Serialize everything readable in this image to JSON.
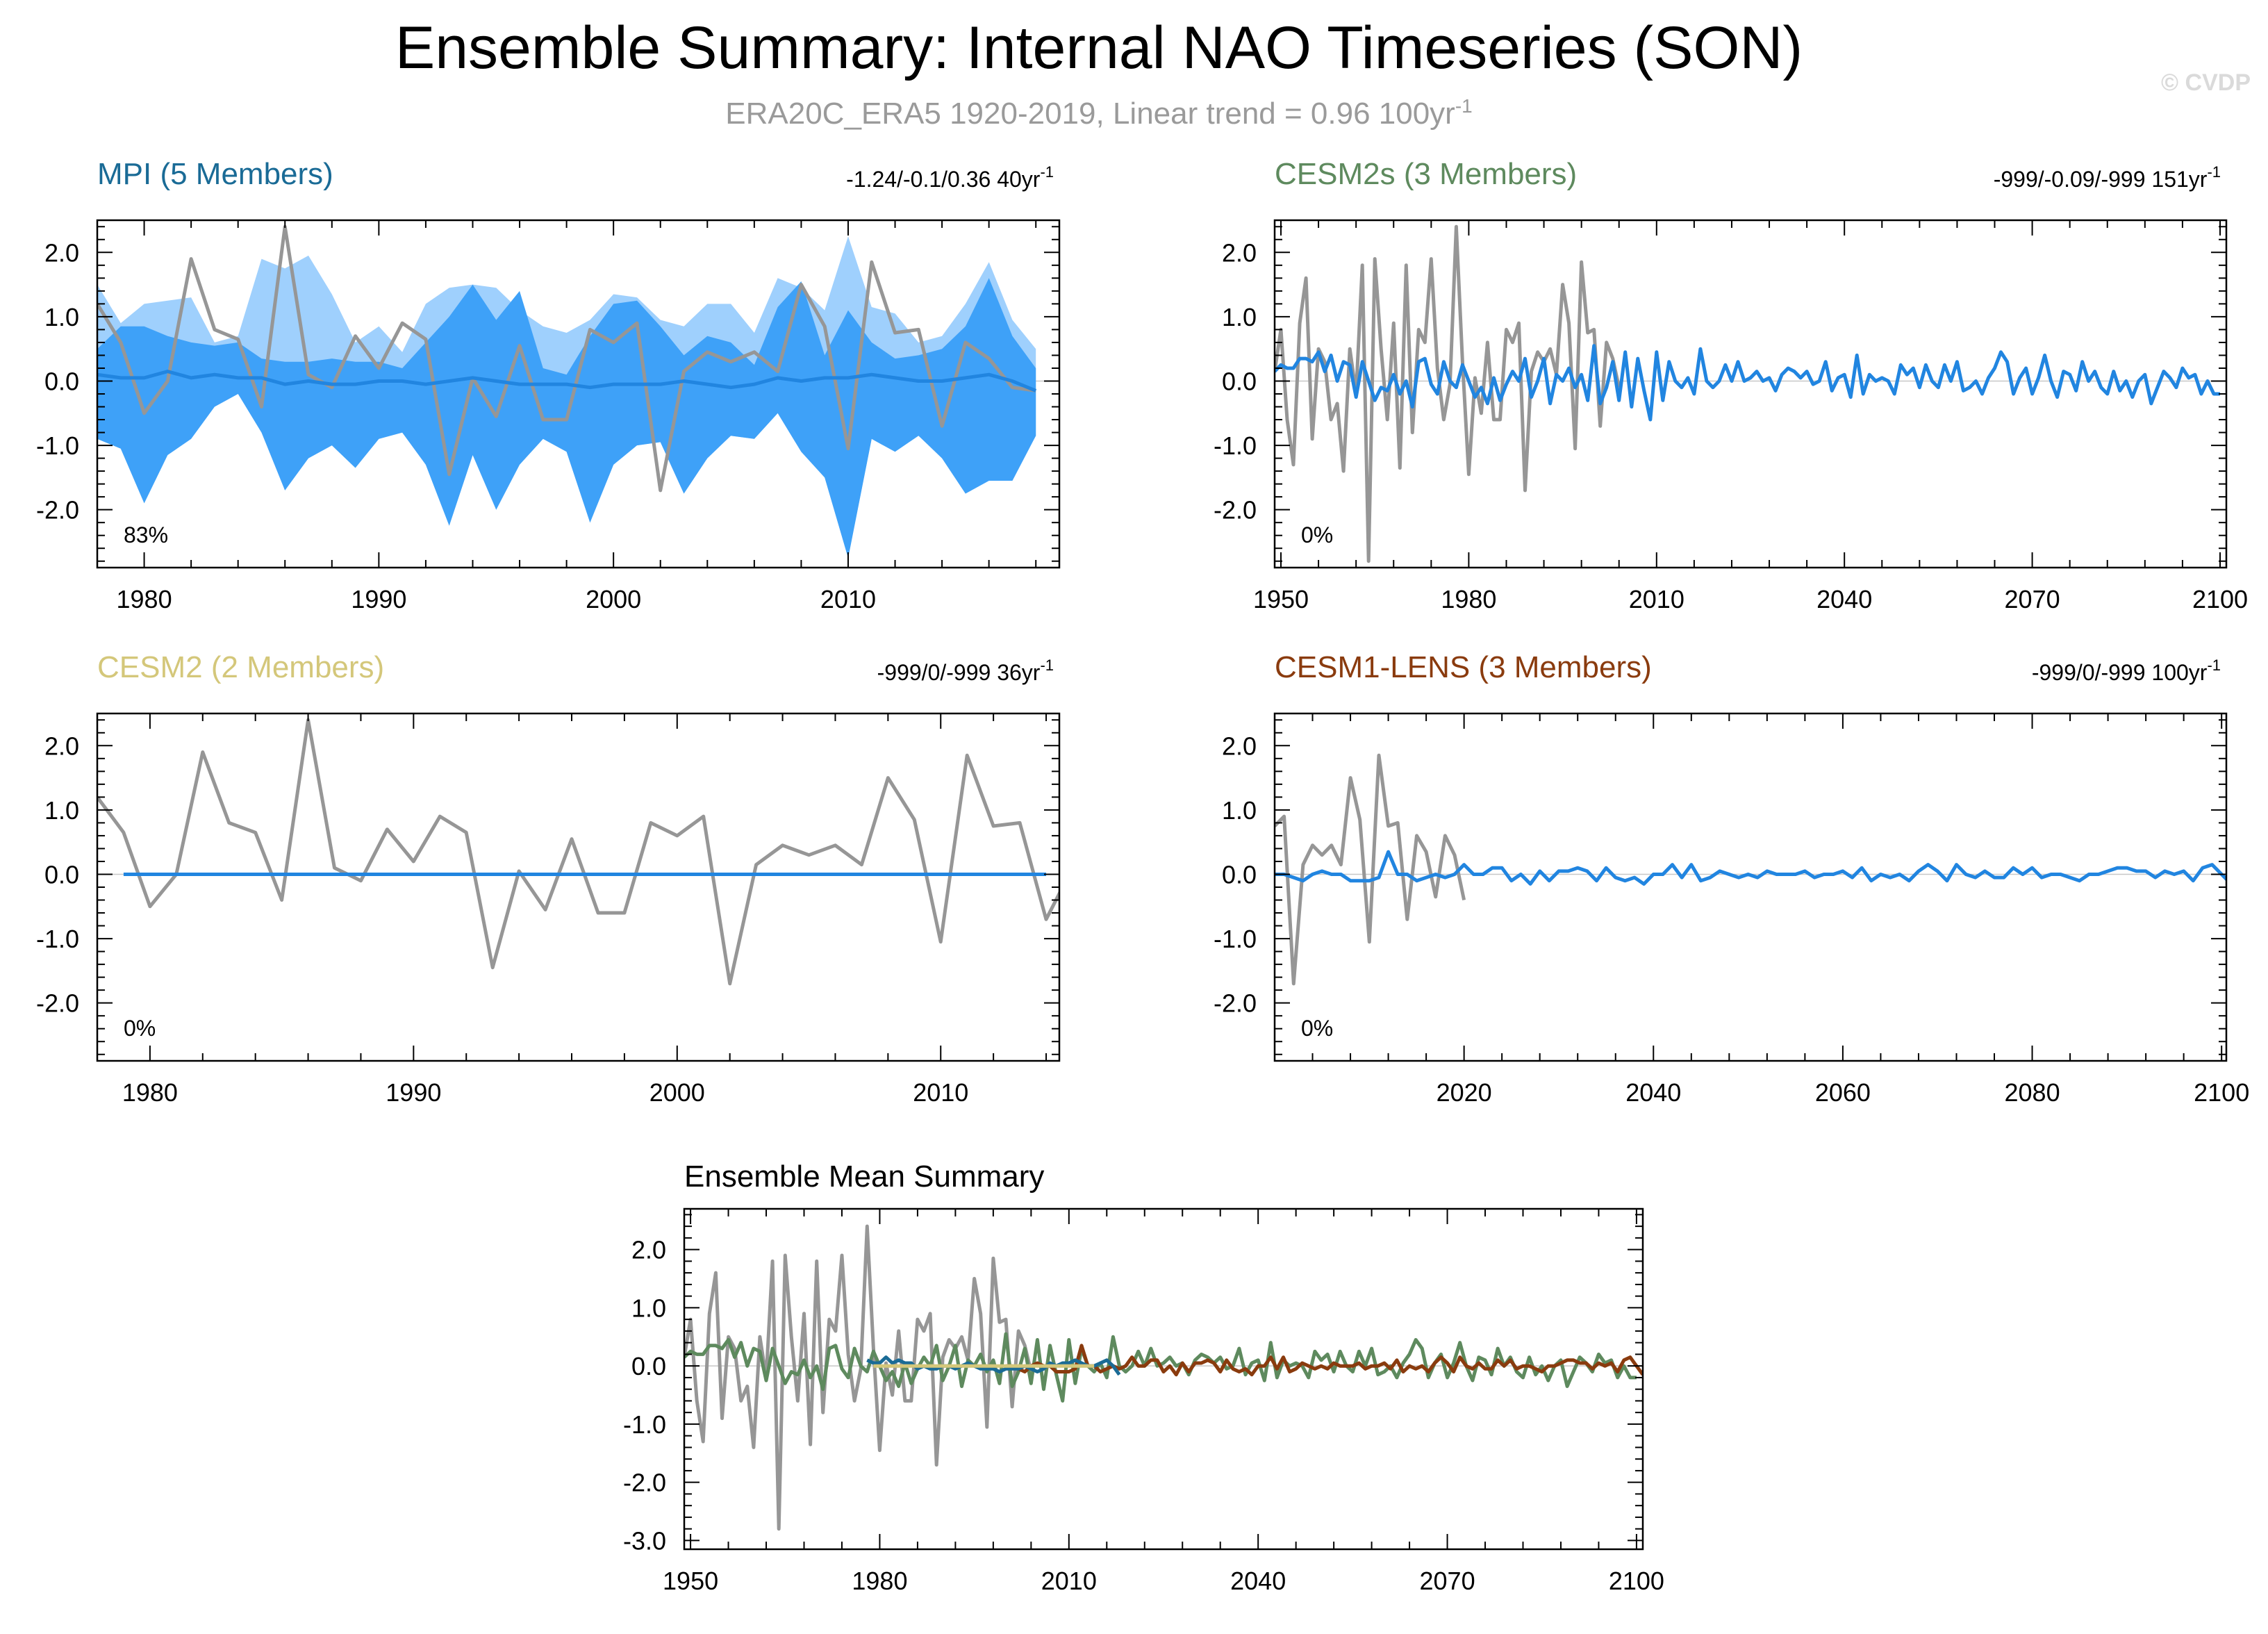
{
  "title": "Ensemble Summary: Internal NAO Timeseries (SON)",
  "subtitle": "ERA20C_ERA5 1920-2019, Linear trend = 0.96 100yr",
  "subtitle_sup": "-1",
  "copyright": "© CVDP",
  "colors": {
    "observed": "#969696",
    "ensemble_mean": "#2185e0",
    "spread_inner": "#3ea1f8",
    "spread_outer": "#9fd0fd",
    "mpi": "#1a6b96",
    "cesm2s": "#5e8a5e",
    "cesm2": "#d4c77a",
    "cesm1lens": "#8a3b0e"
  },
  "chart_data": [
    {
      "id": "mpi",
      "type": "line",
      "title": "MPI (5 Members)",
      "stat_text": "-1.24/-0.1/0.36 40yr",
      "stat_sup": "-1",
      "annotation": "83%",
      "xlim": [
        1978,
        2019
      ],
      "ylim": [
        -2.9,
        2.5
      ],
      "xticks": [
        1980,
        1990,
        2000,
        2010
      ],
      "yticks": [
        2.0,
        1.0,
        0.0,
        -1.0,
        -2.0
      ],
      "x": [
        1978,
        1979,
        1980,
        1981,
        1982,
        1983,
        1984,
        1985,
        1986,
        1987,
        1988,
        1989,
        1990,
        1991,
        1992,
        1993,
        1994,
        1995,
        1996,
        1997,
        1998,
        1999,
        2000,
        2001,
        2002,
        2003,
        2004,
        2005,
        2006,
        2007,
        2008,
        2009,
        2010,
        2011,
        2012,
        2013,
        2014,
        2015,
        2016,
        2017,
        2018
      ],
      "bands": [
        {
          "name": "Outer spread",
          "upper": [
            1.5,
            0.9,
            1.2,
            1.25,
            1.3,
            0.6,
            0.7,
            1.9,
            1.75,
            1.95,
            1.35,
            0.6,
            0.85,
            0.45,
            1.2,
            1.45,
            1.5,
            1.45,
            1.1,
            0.85,
            0.75,
            0.95,
            1.35,
            1.3,
            0.95,
            0.85,
            1.2,
            1.2,
            0.75,
            1.6,
            1.45,
            1.1,
            2.25,
            1.15,
            1.05,
            0.6,
            0.7,
            1.2,
            1.85,
            0.95,
            0.5
          ],
          "lower": [
            -0.9,
            -1.05,
            -1.9,
            -1.15,
            -0.9,
            -0.4,
            -0.2,
            -0.8,
            -1.7,
            -1.2,
            -1.0,
            -1.35,
            -0.9,
            -0.8,
            -1.3,
            -2.25,
            -1.15,
            -2.0,
            -1.3,
            -0.9,
            -1.1,
            -2.2,
            -1.3,
            -1.0,
            -0.95,
            -1.75,
            -1.2,
            -0.85,
            -0.9,
            -0.5,
            -1.1,
            -1.5,
            -2.75,
            -0.9,
            -1.1,
            -0.85,
            -1.2,
            -1.75,
            -1.55,
            -1.55,
            -0.85
          ]
        },
        {
          "name": "Inner spread",
          "upper": [
            0.5,
            0.85,
            0.85,
            0.7,
            0.6,
            0.55,
            0.6,
            0.35,
            0.3,
            0.3,
            0.35,
            0.3,
            0.3,
            0.2,
            0.6,
            1.0,
            1.5,
            0.95,
            1.4,
            0.2,
            0.1,
            0.7,
            1.2,
            1.25,
            0.85,
            0.4,
            0.7,
            0.6,
            0.25,
            1.15,
            1.55,
            0.4,
            1.1,
            0.6,
            0.35,
            0.4,
            0.5,
            0.85,
            1.6,
            0.7,
            0.2
          ],
          "lower": [
            -0.9,
            -1.05,
            -1.9,
            -1.15,
            -0.9,
            -0.4,
            -0.2,
            -0.8,
            -1.7,
            -1.2,
            -1.0,
            -1.35,
            -0.9,
            -0.8,
            -1.3,
            -2.25,
            -1.15,
            -2.0,
            -1.3,
            -0.9,
            -1.1,
            -2.2,
            -1.3,
            -1.0,
            -0.95,
            -1.75,
            -1.2,
            -0.85,
            -0.9,
            -0.5,
            -1.1,
            -1.5,
            -2.75,
            -0.9,
            -1.1,
            -0.85,
            -1.2,
            -1.75,
            -1.55,
            -1.55,
            -0.85
          ]
        }
      ],
      "series": [
        {
          "role": "observed",
          "x": [
            1978,
            1979,
            1980,
            1981,
            1982,
            1983,
            1984,
            1985,
            1986,
            1987,
            1988,
            1989,
            1990,
            1991,
            1992,
            1993,
            1994,
            1995,
            1996,
            1997,
            1998,
            1999,
            2000,
            2001,
            2002,
            2003,
            2004,
            2005,
            2006,
            2007,
            2008,
            2009,
            2010,
            2011,
            2012,
            2013,
            2014,
            2015,
            2016,
            2017,
            2018
          ],
          "values": [
            1.2,
            0.6,
            -0.5,
            0.0,
            1.9,
            0.8,
            0.65,
            -0.4,
            2.4,
            0.1,
            -0.1,
            0.7,
            0.2,
            0.9,
            0.65,
            -1.45,
            0.05,
            -0.55,
            0.55,
            -0.6,
            -0.6,
            0.8,
            0.6,
            0.9,
            -1.7,
            0.15,
            0.45,
            0.3,
            0.45,
            0.15,
            1.5,
            0.85,
            -1.05,
            1.85,
            0.75,
            0.8,
            -0.7,
            0.6,
            0.35,
            -0.1,
            -0.15
          ]
        },
        {
          "role": "ensemble_mean",
          "x": [
            1978,
            1979,
            1980,
            1981,
            1982,
            1983,
            1984,
            1985,
            1986,
            1987,
            1988,
            1989,
            1990,
            1991,
            1992,
            1993,
            1994,
            1995,
            1996,
            1997,
            1998,
            1999,
            2000,
            2001,
            2002,
            2003,
            2004,
            2005,
            2006,
            2007,
            2008,
            2009,
            2010,
            2011,
            2012,
            2013,
            2014,
            2015,
            2016,
            2017,
            2018
          ],
          "values": [
            0.1,
            0.05,
            0.05,
            0.15,
            0.05,
            0.1,
            0.05,
            0.05,
            -0.05,
            0.0,
            -0.05,
            -0.05,
            0.0,
            0.0,
            -0.05,
            0.0,
            0.05,
            0.0,
            -0.05,
            -0.05,
            -0.05,
            -0.1,
            -0.05,
            -0.05,
            -0.05,
            0.0,
            -0.05,
            -0.1,
            -0.05,
            0.05,
            0.0,
            0.05,
            0.05,
            0.1,
            0.05,
            0.0,
            0.0,
            0.05,
            0.1,
            0.0,
            -0.15
          ]
        }
      ]
    },
    {
      "id": "cesm2s",
      "type": "line",
      "title": "CESM2s (3 Members)",
      "stat_text": "-999/-0.09/-999 151yr",
      "stat_sup": "-1",
      "annotation": "0%",
      "xlim": [
        1949,
        2101
      ],
      "ylim": [
        -2.9,
        2.5
      ],
      "xticks": [
        1950,
        1980,
        2010,
        2040,
        2070,
        2100
      ],
      "yticks": [
        2.0,
        1.0,
        0.0,
        -1.0,
        -2.0
      ],
      "series": [
        {
          "role": "observed",
          "x0": 1949,
          "values": [
            0.15,
            0.8,
            -0.6,
            -1.3,
            0.9,
            1.6,
            -0.9,
            0.5,
            0.3,
            -0.6,
            -0.35,
            -1.4,
            0.5,
            -0.2,
            1.8,
            -2.8,
            1.9,
            0.5,
            -0.6,
            0.9,
            -1.35,
            1.8,
            -0.8,
            0.8,
            0.6,
            1.9,
            0.2,
            -0.6,
            -0.05,
            2.4,
            0.3,
            -1.45,
            0.05,
            -0.5,
            0.6,
            -0.6,
            -0.6,
            0.8,
            0.6,
            0.9,
            -1.7,
            0.15,
            0.45,
            0.3,
            0.5,
            0.1,
            1.5,
            0.9,
            -1.05,
            1.85,
            0.75,
            0.8,
            -0.7,
            0.6,
            0.35,
            -0.1
          ]
        },
        {
          "role": "ensemble_mean",
          "x0": 1949,
          "values": [
            0.15,
            0.25,
            0.2,
            0.2,
            0.35,
            0.35,
            0.3,
            0.45,
            0.15,
            0.4,
            0.0,
            0.3,
            0.25,
            -0.25,
            0.3,
            0.0,
            -0.3,
            -0.1,
            -0.15,
            0.1,
            -0.2,
            0.0,
            -0.4,
            0.3,
            0.35,
            -0.05,
            -0.2,
            0.3,
            0.0,
            -0.1,
            0.25,
            0.0,
            -0.25,
            -0.1,
            -0.35,
            0.05,
            -0.3,
            -0.05,
            0.15,
            0.0,
            0.35,
            -0.25,
            0.0,
            0.35,
            -0.35,
            0.1,
            0.0,
            0.2,
            -0.1,
            0.1,
            -0.3,
            0.55,
            -0.35,
            -0.1,
            0.3,
            -0.3,
            0.45,
            -0.4,
            0.35,
            -0.15,
            -0.6,
            0.45,
            -0.3,
            0.3,
            0.0,
            -0.1,
            0.05,
            -0.2,
            0.5,
            0.0,
            -0.1,
            0.0,
            0.25,
            0.0,
            0.3,
            0.0,
            0.05,
            0.15,
            0.0,
            0.05,
            -0.15,
            0.1,
            0.2,
            0.15,
            0.05,
            0.15,
            -0.05,
            0.0,
            0.3,
            -0.15,
            0.05,
            0.1,
            -0.25,
            0.4,
            -0.2,
            0.1,
            0.0,
            0.05,
            0.0,
            -0.2,
            0.25,
            0.1,
            0.2,
            -0.1,
            0.25,
            0.0,
            -0.1,
            0.25,
            0.0,
            0.3,
            -0.15,
            -0.1,
            0.0,
            -0.2,
            0.05,
            0.2,
            0.45,
            0.3,
            -0.2,
            0.05,
            0.2,
            -0.2,
            0.05,
            0.4,
            0.0,
            -0.25,
            0.15,
            0.1,
            -0.15,
            0.3,
            0.0,
            0.15,
            -0.1,
            -0.2,
            0.15,
            -0.15,
            0.0,
            -0.25,
            0.0,
            0.1,
            -0.35,
            -0.1,
            0.15,
            0.05,
            -0.1,
            0.2,
            0.05,
            0.1,
            -0.2,
            0.0,
            -0.2,
            -0.2
          ]
        }
      ]
    },
    {
      "id": "cesm2",
      "type": "line",
      "title": "CESM2 (2 Members)",
      "stat_text": "-999/0/-999 36yr",
      "stat_sup": "-1",
      "annotation": "0%",
      "xlim": [
        1978,
        2014.5
      ],
      "ylim": [
        -2.9,
        2.5
      ],
      "xticks": [
        1980,
        1990,
        2000,
        2010
      ],
      "yticks": [
        2.0,
        1.0,
        0.0,
        -1.0,
        -2.0
      ],
      "series": [
        {
          "role": "observed",
          "x0": 1978,
          "values": [
            1.2,
            0.65,
            -0.5,
            0.0,
            1.9,
            0.8,
            0.65,
            -0.4,
            2.4,
            0.1,
            -0.1,
            0.7,
            0.2,
            0.9,
            0.65,
            -1.45,
            0.05,
            -0.55,
            0.55,
            -0.6,
            -0.6,
            0.8,
            0.6,
            0.9,
            -1.7,
            0.15,
            0.45,
            0.3,
            0.45,
            0.15,
            1.5,
            0.85,
            -1.05,
            1.85,
            0.75,
            0.8,
            -0.7,
            0.1
          ]
        },
        {
          "role": "ensemble_mean",
          "x": [
            1979,
            2014
          ],
          "values": [
            0.0,
            0.0
          ]
        }
      ]
    },
    {
      "id": "cesm1lens",
      "type": "line",
      "title": "CESM1-LENS (3 Members)",
      "stat_text": "-999/0/-999 100yr",
      "stat_sup": "-1",
      "annotation": "0%",
      "xlim": [
        2000,
        2100.5
      ],
      "ylim": [
        -2.9,
        2.5
      ],
      "xticks": [
        2020,
        2040,
        2060,
        2080,
        2100
      ],
      "yticks": [
        2.0,
        1.0,
        0.0,
        -1.0,
        -2.0
      ],
      "series": [
        {
          "role": "observed",
          "x0": 2000,
          "values": [
            0.75,
            0.9,
            -1.7,
            0.15,
            0.45,
            0.3,
            0.45,
            0.15,
            1.5,
            0.85,
            -1.05,
            1.85,
            0.75,
            0.8,
            -0.7,
            0.6,
            0.35,
            -0.35,
            0.6,
            0.3,
            -0.4
          ]
        },
        {
          "role": "ensemble_mean",
          "x0": 2000,
          "values": [
            0.0,
            0.0,
            -0.05,
            -0.1,
            0.0,
            0.05,
            0.0,
            0.0,
            -0.1,
            -0.1,
            -0.1,
            -0.05,
            0.35,
            0.0,
            0.0,
            -0.1,
            -0.05,
            0.0,
            -0.05,
            0.0,
            0.15,
            0.0,
            0.0,
            0.1,
            0.1,
            -0.1,
            0.0,
            -0.15,
            0.05,
            -0.1,
            0.05,
            0.05,
            0.1,
            0.05,
            -0.1,
            0.1,
            -0.05,
            -0.1,
            -0.05,
            -0.15,
            0.0,
            0.0,
            0.15,
            -0.05,
            0.15,
            -0.1,
            -0.05,
            0.05,
            0.0,
            -0.05,
            0.0,
            -0.05,
            0.05,
            0.0,
            0.0,
            0.0,
            0.05,
            -0.05,
            0.0,
            0.0,
            0.05,
            -0.05,
            0.1,
            -0.1,
            0.0,
            -0.05,
            0.0,
            -0.1,
            0.05,
            0.15,
            0.05,
            -0.1,
            0.15,
            0.0,
            -0.05,
            0.05,
            -0.05,
            -0.05,
            0.1,
            0.0,
            0.1,
            -0.05,
            0.0,
            0.0,
            -0.05,
            -0.1,
            0.0,
            0.0,
            0.05,
            0.1,
            0.1,
            0.05,
            0.05,
            -0.05,
            0.05,
            0.0,
            0.05,
            -0.1,
            0.1,
            0.15,
            0.0,
            -0.15
          ]
        }
      ]
    },
    {
      "id": "ensemble_mean_summary",
      "type": "line",
      "title": "Ensemble Mean Summary",
      "xlim": [
        1949,
        2101
      ],
      "ylim": [
        -3.15,
        2.7
      ],
      "xticks": [
        1950,
        1980,
        2010,
        2040,
        2070,
        2100
      ],
      "yticks": [
        2.0,
        1.0,
        0.0,
        -1.0,
        -2.0,
        -3.0
      ],
      "series": [
        {
          "role": "observed",
          "ref": "cesm2s.observed"
        },
        {
          "role": "cesm2s",
          "ref": "cesm2s.ensemble_mean"
        },
        {
          "role": "cesm1lens",
          "ref": "cesm1lens.ensemble_mean"
        },
        {
          "role": "mpi",
          "ref": "mpi.ensemble_mean"
        },
        {
          "role": "cesm2",
          "ref": "cesm2.ensemble_mean"
        }
      ]
    }
  ]
}
